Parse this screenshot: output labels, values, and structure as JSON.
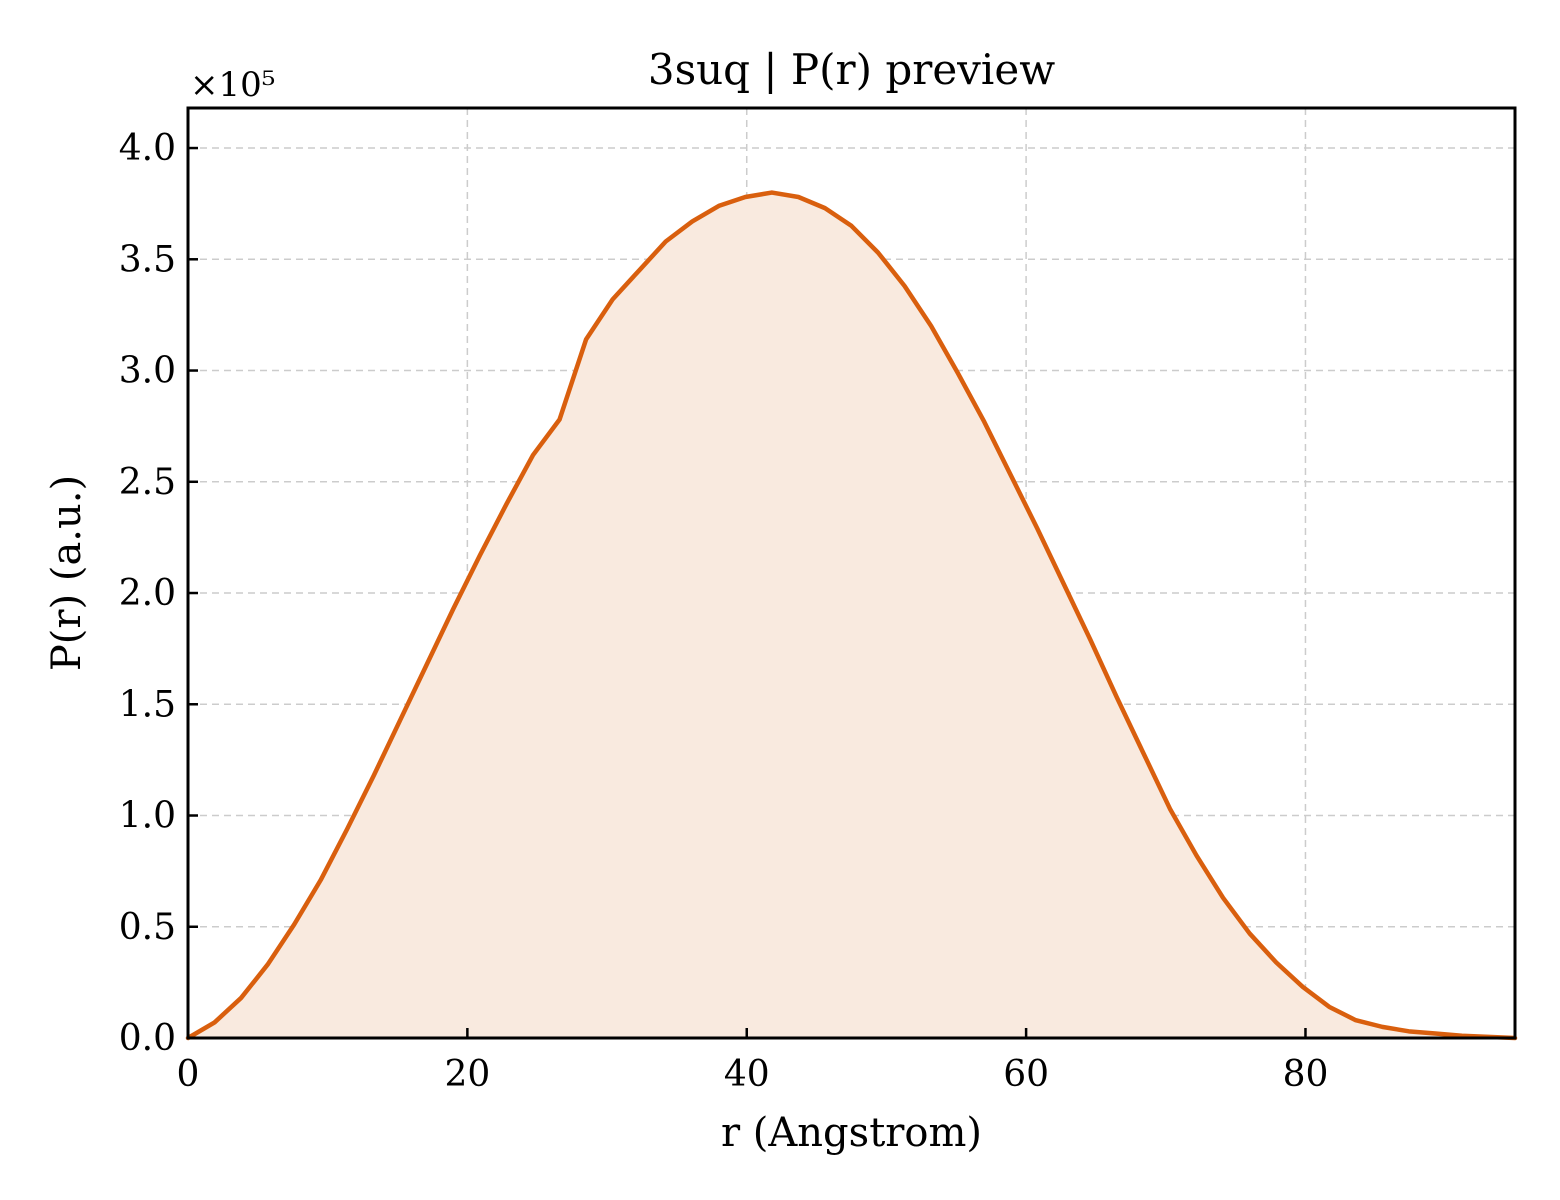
{
  "chart_data": {
    "type": "area",
    "title": "3suq | P(r) preview",
    "xlabel": "r (Angstrom)",
    "ylabel": "P(r) (a.u.)",
    "y_offset_label": "×10⁵",
    "xlim": [
      0,
      95
    ],
    "ylim": [
      0,
      4.18
    ],
    "xticks": [
      0,
      20,
      40,
      60,
      80
    ],
    "xtick_labels": [
      "0",
      "20",
      "40",
      "60",
      "80"
    ],
    "yticks": [
      0,
      0.5,
      1.0,
      1.5,
      2.0,
      2.5,
      3.0,
      3.5,
      4.0
    ],
    "ytick_labels": [
      "0.0",
      "0.5",
      "1.0",
      "1.5",
      "2.0",
      "2.5",
      "3.0",
      "3.5",
      "4.0"
    ],
    "grid": true,
    "tick_direction": "in",
    "colors": {
      "line": "#d95f0e",
      "fill": "#f9eadf",
      "grid": "#cccccc"
    },
    "series": [
      {
        "name": "",
        "x": [
          0,
          1.9,
          3.8,
          5.7,
          7.6,
          9.5,
          11.4,
          13.3,
          15.2,
          17.1,
          19.0,
          20.9,
          22.8,
          24.7,
          26.6,
          28.5,
          30.4,
          32.3,
          34.2,
          36.1,
          38.0,
          39.9,
          41.8,
          43.7,
          45.6,
          47.5,
          49.4,
          51.3,
          53.2,
          55.1,
          57.0,
          58.9,
          60.8,
          62.7,
          64.6,
          66.5,
          68.4,
          70.3,
          72.2,
          74.1,
          76.0,
          77.9,
          79.8,
          81.7,
          83.6,
          85.5,
          87.4,
          89.3,
          91.2,
          93.1,
          95.0
        ],
        "y": [
          0.0,
          0.07,
          0.18,
          0.33,
          0.51,
          0.71,
          0.94,
          1.18,
          1.43,
          1.68,
          1.93,
          2.17,
          2.4,
          2.62,
          2.78,
          3.14,
          3.32,
          3.45,
          3.58,
          3.67,
          3.74,
          3.78,
          3.8,
          3.78,
          3.73,
          3.65,
          3.53,
          3.38,
          3.2,
          2.99,
          2.77,
          2.53,
          2.29,
          2.04,
          1.79,
          1.53,
          1.28,
          1.03,
          0.82,
          0.63,
          0.47,
          0.34,
          0.23,
          0.14,
          0.08,
          0.05,
          0.03,
          0.02,
          0.01,
          0.005,
          0.0
        ]
      }
    ]
  }
}
